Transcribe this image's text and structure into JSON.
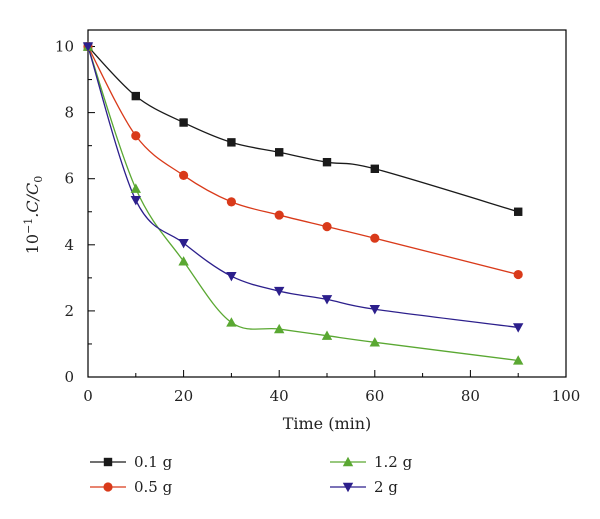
{
  "chart_data": {
    "type": "line",
    "title": "",
    "xlabel": "Time (min)",
    "ylabel": {
      "base": "10",
      "exp": "−1",
      "rest": ".C/C",
      "sub": "0"
    },
    "xlim": [
      0,
      100
    ],
    "ylim": [
      0,
      10.5
    ],
    "x_ticks": [
      "0",
      "20",
      "40",
      "60",
      "80",
      "100"
    ],
    "y_ticks": [
      "0",
      "2",
      "4",
      "6",
      "8",
      "10"
    ],
    "grid": false,
    "legend_position": "bottom",
    "series": [
      {
        "name": "0.1 g",
        "color": "#1a1a1a",
        "marker": "square",
        "x": [
          0,
          10,
          20,
          30,
          40,
          50,
          60,
          90
        ],
        "y": [
          10,
          8.5,
          7.7,
          7.1,
          6.8,
          6.5,
          6.3,
          5.0
        ]
      },
      {
        "name": "0.5 g",
        "color": "#d93a1a",
        "marker": "circle",
        "x": [
          0,
          10,
          20,
          30,
          40,
          50,
          60,
          90
        ],
        "y": [
          10,
          7.3,
          6.1,
          5.3,
          4.9,
          4.55,
          4.2,
          3.1
        ]
      },
      {
        "name": "1.2 g",
        "color": "#5aa832",
        "marker": "triangle-up",
        "x": [
          0,
          10,
          20,
          30,
          40,
          50,
          60,
          90
        ],
        "y": [
          10,
          5.7,
          3.5,
          1.65,
          1.45,
          1.25,
          1.05,
          0.5
        ]
      },
      {
        "name": "2 g",
        "color": "#2c1f8c",
        "marker": "triangle-down",
        "x": [
          0,
          10,
          20,
          30,
          40,
          50,
          60,
          90
        ],
        "y": [
          10,
          5.35,
          4.05,
          3.05,
          2.6,
          2.35,
          2.05,
          1.5
        ]
      }
    ]
  }
}
